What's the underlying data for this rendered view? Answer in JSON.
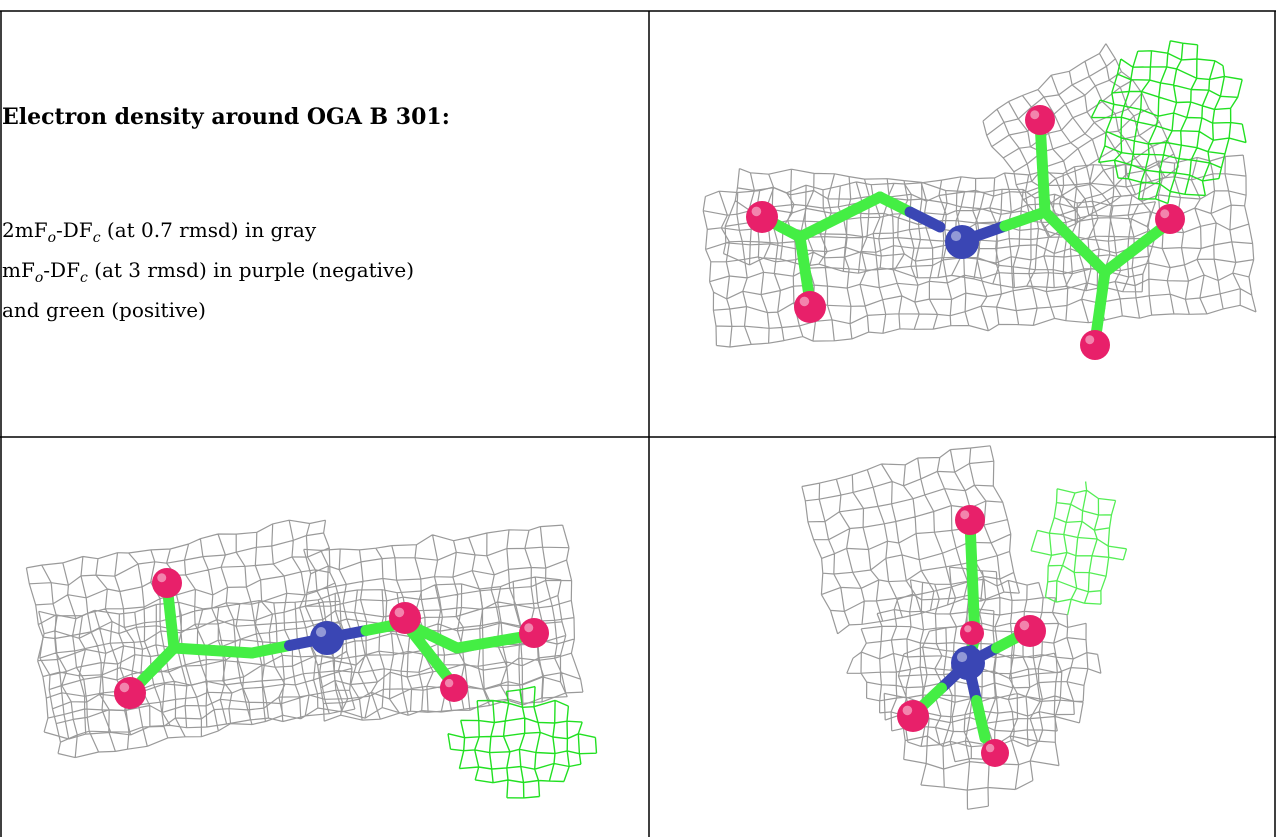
{
  "caption": {
    "title": "Electron density around OGA B 301:",
    "line1": {
      "a": "2mF",
      "b": "o",
      "c": "-DF",
      "d": "c",
      "e": " (at 0.7 rmsd) in gray"
    },
    "line2": {
      "a": "mF",
      "b": "o",
      "c": "-DF",
      "d": "c",
      "e": " (at 3 rmsd) in purple (negative)"
    },
    "line3": "and green (positive)"
  },
  "colors": {
    "mesh_gray": "#9a9a9a",
    "mesh_green": "#22e022",
    "bond_green": "#44ee44",
    "oxygen": "#e8206a",
    "nitrogen": "#3a46b4",
    "grid_line": "#000000"
  }
}
